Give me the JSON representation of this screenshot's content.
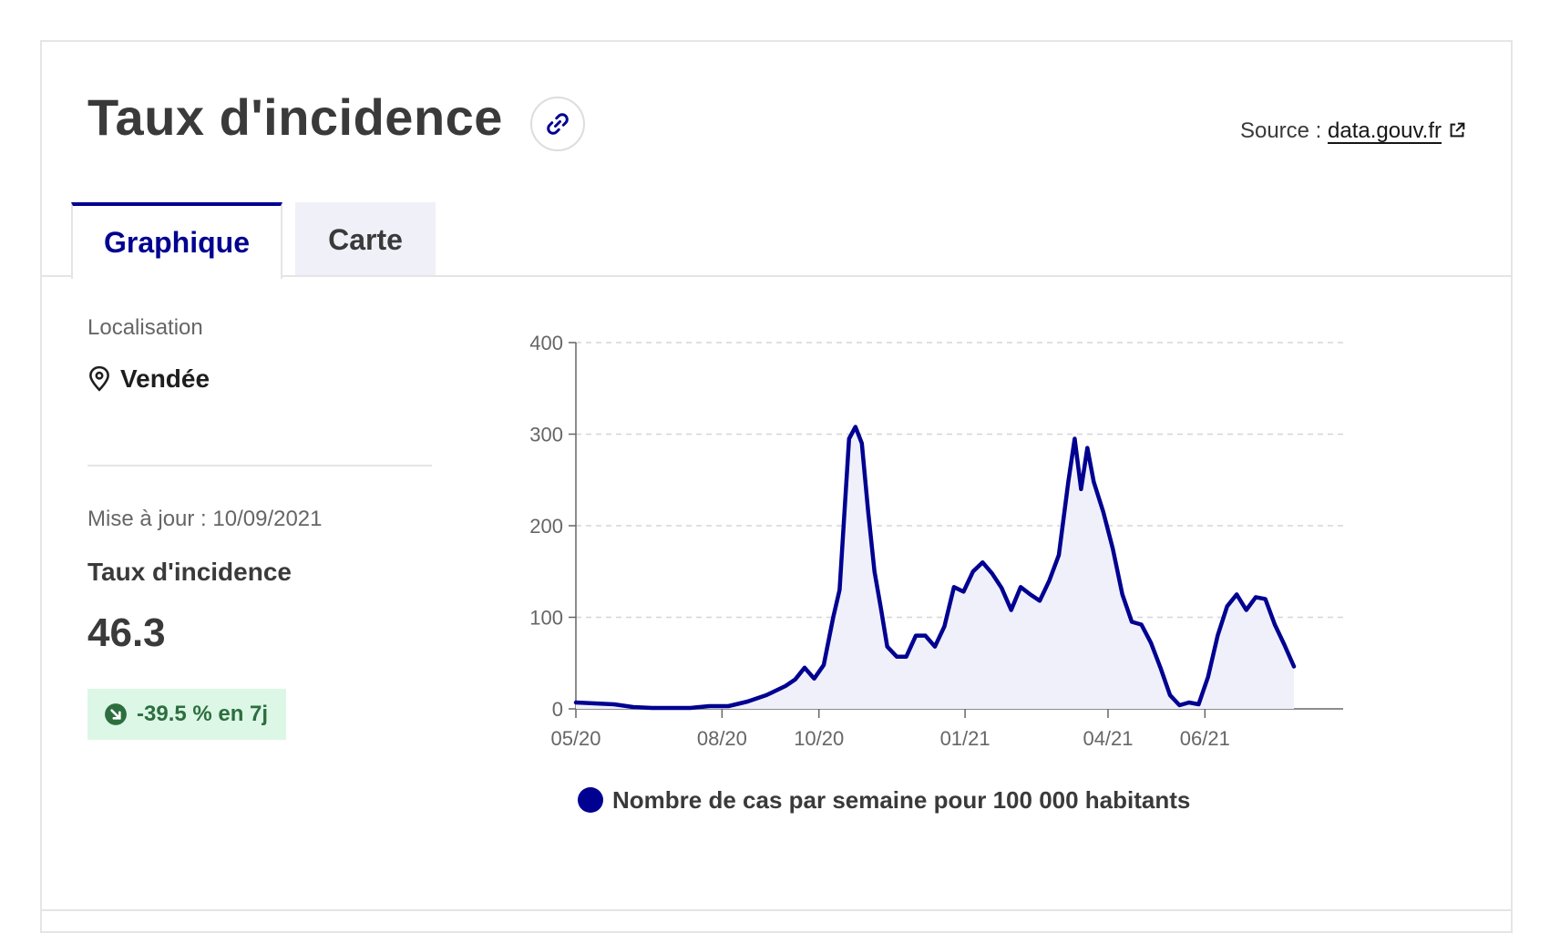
{
  "page": {
    "title": "Taux d'incidence",
    "source_label": "Source :",
    "source_link": "data.gouv.fr"
  },
  "tabs": [
    {
      "label": "Graphique",
      "active": true
    },
    {
      "label": "Carte",
      "active": false
    }
  ],
  "sidebar": {
    "location_label": "Localisation",
    "location_value": "Vendée",
    "update_text": "Mise à jour : 10/09/2021",
    "metric_label": "Taux d'incidence",
    "metric_value": "46.3",
    "trend_text": "-39.5 % en 7j"
  },
  "colors": {
    "accent": "#000091",
    "trend_bg": "#dcf7e6",
    "trend_fg": "#2d6e3f"
  },
  "chart_data": {
    "type": "area",
    "legend": "Nombre de cas par semaine pour 100 000 habitants",
    "ylim": [
      0,
      400
    ],
    "yticks": [
      0,
      100,
      200,
      300,
      400
    ],
    "grid": true,
    "x_domain": [
      "2020-05-13",
      "2021-09-08"
    ],
    "xticks": [
      {
        "date": "2020-05-13",
        "label": "05/20"
      },
      {
        "date": "2020-08-13",
        "label": "08/20"
      },
      {
        "date": "2020-10-13",
        "label": "10/20"
      },
      {
        "date": "2021-01-13",
        "label": "01/21"
      },
      {
        "date": "2021-04-13",
        "label": "04/21"
      },
      {
        "date": "2021-06-13",
        "label": "06/21"
      }
    ],
    "series": [
      {
        "name": "Nombre de cas par semaine pour 100 000 habitants",
        "points": [
          [
            "2020-05-13",
            7
          ],
          [
            "2020-05-25",
            6
          ],
          [
            "2020-06-06",
            5
          ],
          [
            "2020-06-18",
            2
          ],
          [
            "2020-06-30",
            1
          ],
          [
            "2020-07-12",
            1
          ],
          [
            "2020-07-24",
            1
          ],
          [
            "2020-08-05",
            3
          ],
          [
            "2020-08-17",
            3
          ],
          [
            "2020-08-29",
            8
          ],
          [
            "2020-09-10",
            15
          ],
          [
            "2020-09-22",
            25
          ],
          [
            "2020-09-28",
            32
          ],
          [
            "2020-10-04",
            45
          ],
          [
            "2020-10-10",
            33
          ],
          [
            "2020-10-16",
            48
          ],
          [
            "2020-10-22",
            100
          ],
          [
            "2020-10-26",
            130
          ],
          [
            "2020-11-01",
            295
          ],
          [
            "2020-11-05",
            308
          ],
          [
            "2020-11-09",
            290
          ],
          [
            "2020-11-13",
            215
          ],
          [
            "2020-11-17",
            150
          ],
          [
            "2020-11-21",
            110
          ],
          [
            "2020-11-25",
            68
          ],
          [
            "2020-12-01",
            57
          ],
          [
            "2020-12-07",
            57
          ],
          [
            "2020-12-13",
            80
          ],
          [
            "2020-12-19",
            80
          ],
          [
            "2020-12-25",
            68
          ],
          [
            "2020-12-31",
            90
          ],
          [
            "2021-01-06",
            133
          ],
          [
            "2021-01-12",
            128
          ],
          [
            "2021-01-18",
            150
          ],
          [
            "2021-01-24",
            160
          ],
          [
            "2021-01-30",
            148
          ],
          [
            "2021-02-05",
            132
          ],
          [
            "2021-02-11",
            108
          ],
          [
            "2021-02-17",
            133
          ],
          [
            "2021-02-23",
            125
          ],
          [
            "2021-03-01",
            118
          ],
          [
            "2021-03-07",
            140
          ],
          [
            "2021-03-13",
            168
          ],
          [
            "2021-03-19",
            248
          ],
          [
            "2021-03-23",
            295
          ],
          [
            "2021-03-27",
            240
          ],
          [
            "2021-03-31",
            285
          ],
          [
            "2021-04-04",
            248
          ],
          [
            "2021-04-10",
            215
          ],
          [
            "2021-04-16",
            175
          ],
          [
            "2021-04-22",
            125
          ],
          [
            "2021-04-28",
            95
          ],
          [
            "2021-05-04",
            92
          ],
          [
            "2021-05-10",
            72
          ],
          [
            "2021-05-16",
            45
          ],
          [
            "2021-05-22",
            15
          ],
          [
            "2021-05-28",
            4
          ],
          [
            "2021-06-03",
            7
          ],
          [
            "2021-06-09",
            5
          ],
          [
            "2021-06-15",
            35
          ],
          [
            "2021-06-21",
            80
          ],
          [
            "2021-06-27",
            112
          ],
          [
            "2021-07-03",
            125
          ],
          [
            "2021-07-09",
            108
          ],
          [
            "2021-07-15",
            122
          ],
          [
            "2021-07-21",
            120
          ],
          [
            "2021-07-27",
            92
          ],
          [
            "2021-08-02",
            70
          ],
          [
            "2021-08-08",
            46.3
          ]
        ]
      }
    ]
  }
}
